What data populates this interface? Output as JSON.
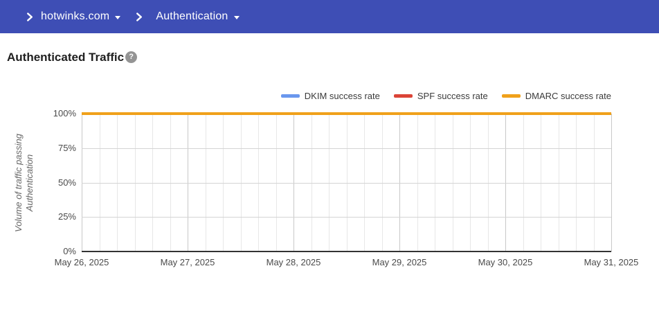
{
  "header": {
    "breadcrumb": [
      {
        "label": "hotwinks.com"
      },
      {
        "label": "Authentication"
      }
    ]
  },
  "page": {
    "title": "Authenticated Traffic",
    "help_glyph": "?"
  },
  "chart_data": {
    "type": "line",
    "title": "Authenticated Traffic",
    "categories": [
      "May 26, 2025",
      "May 27, 2025",
      "May 28, 2025",
      "May 29, 2025",
      "May 30, 2025",
      "May 31, 2025"
    ],
    "series": [
      {
        "name": "DKIM success rate",
        "color": "#6A97EE",
        "values": [
          100,
          100,
          100,
          100,
          100,
          100
        ]
      },
      {
        "name": "SPF success rate",
        "color": "#DB4437",
        "values": [
          100,
          100,
          100,
          100,
          100,
          100
        ]
      },
      {
        "name": "DMARC success rate",
        "color": "#F0A11B",
        "values": [
          100,
          100,
          100,
          100,
          100,
          100
        ]
      }
    ],
    "xlabel": "",
    "ylabel": "Volume of traffic passing Authentication",
    "y_ticks": [
      "100%",
      "75%",
      "50%",
      "25%",
      "0%"
    ],
    "ylim": [
      0,
      100
    ],
    "grid": {
      "vertical_minor_per_day": 6,
      "horizontal_percent_step": 25,
      "grid_on": true
    },
    "legend_position": "top-right",
    "colors": {
      "header_bar": "#3E4EB5",
      "axis": "#333333",
      "grid_major": "#C8C8C8",
      "grid_minor": "#E7E7E7"
    }
  }
}
